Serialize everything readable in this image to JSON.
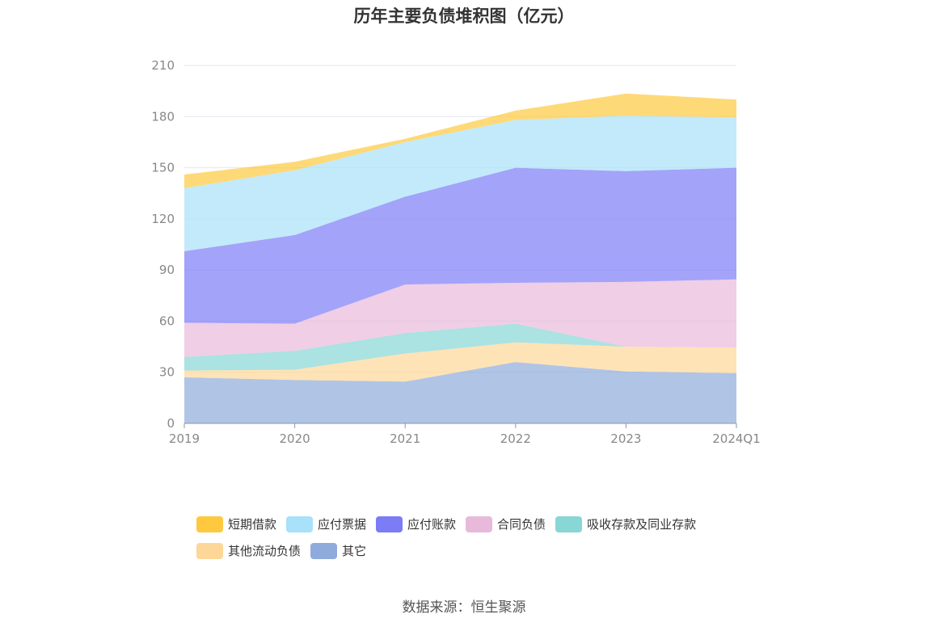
{
  "chart_data": {
    "type": "area",
    "stacked": true,
    "title": "历年主要负债堆积图（亿元）",
    "source": "数据来源：恒生聚源",
    "categories": [
      "2019",
      "2020",
      "2021",
      "2022",
      "2023",
      "2024Q1"
    ],
    "ylim": [
      0,
      210
    ],
    "yticks": [
      0,
      30,
      60,
      90,
      120,
      150,
      180,
      210
    ],
    "grid": true,
    "legend_position": "bottom",
    "series": [
      {
        "name": "其它",
        "color": "#8fabdc",
        "values": [
          27,
          25.5,
          24.5,
          36,
          30.5,
          29.5
        ]
      },
      {
        "name": "其他流动负债",
        "color": "#fdd797",
        "values": [
          4,
          6,
          16.5,
          11.5,
          14.5,
          15
        ]
      },
      {
        "name": "吸收存款及同业存款",
        "color": "#88d6d6",
        "values": [
          8,
          11,
          12,
          11,
          0,
          0
        ]
      },
      {
        "name": "合同负债",
        "color": "#e8b9db",
        "values": [
          20,
          16,
          28.5,
          24,
          38,
          40
        ]
      },
      {
        "name": "应付账款",
        "color": "#7c7cf6",
        "values": [
          42,
          52,
          51.5,
          67.5,
          65,
          65.5
        ]
      },
      {
        "name": "应付票据",
        "color": "#a8e1f9",
        "values": [
          37,
          38,
          32,
          28,
          32.5,
          29.5
        ]
      },
      {
        "name": "短期借款",
        "color": "#fec93f",
        "values": [
          8,
          5,
          2,
          5.5,
          13,
          10.5
        ]
      }
    ]
  }
}
